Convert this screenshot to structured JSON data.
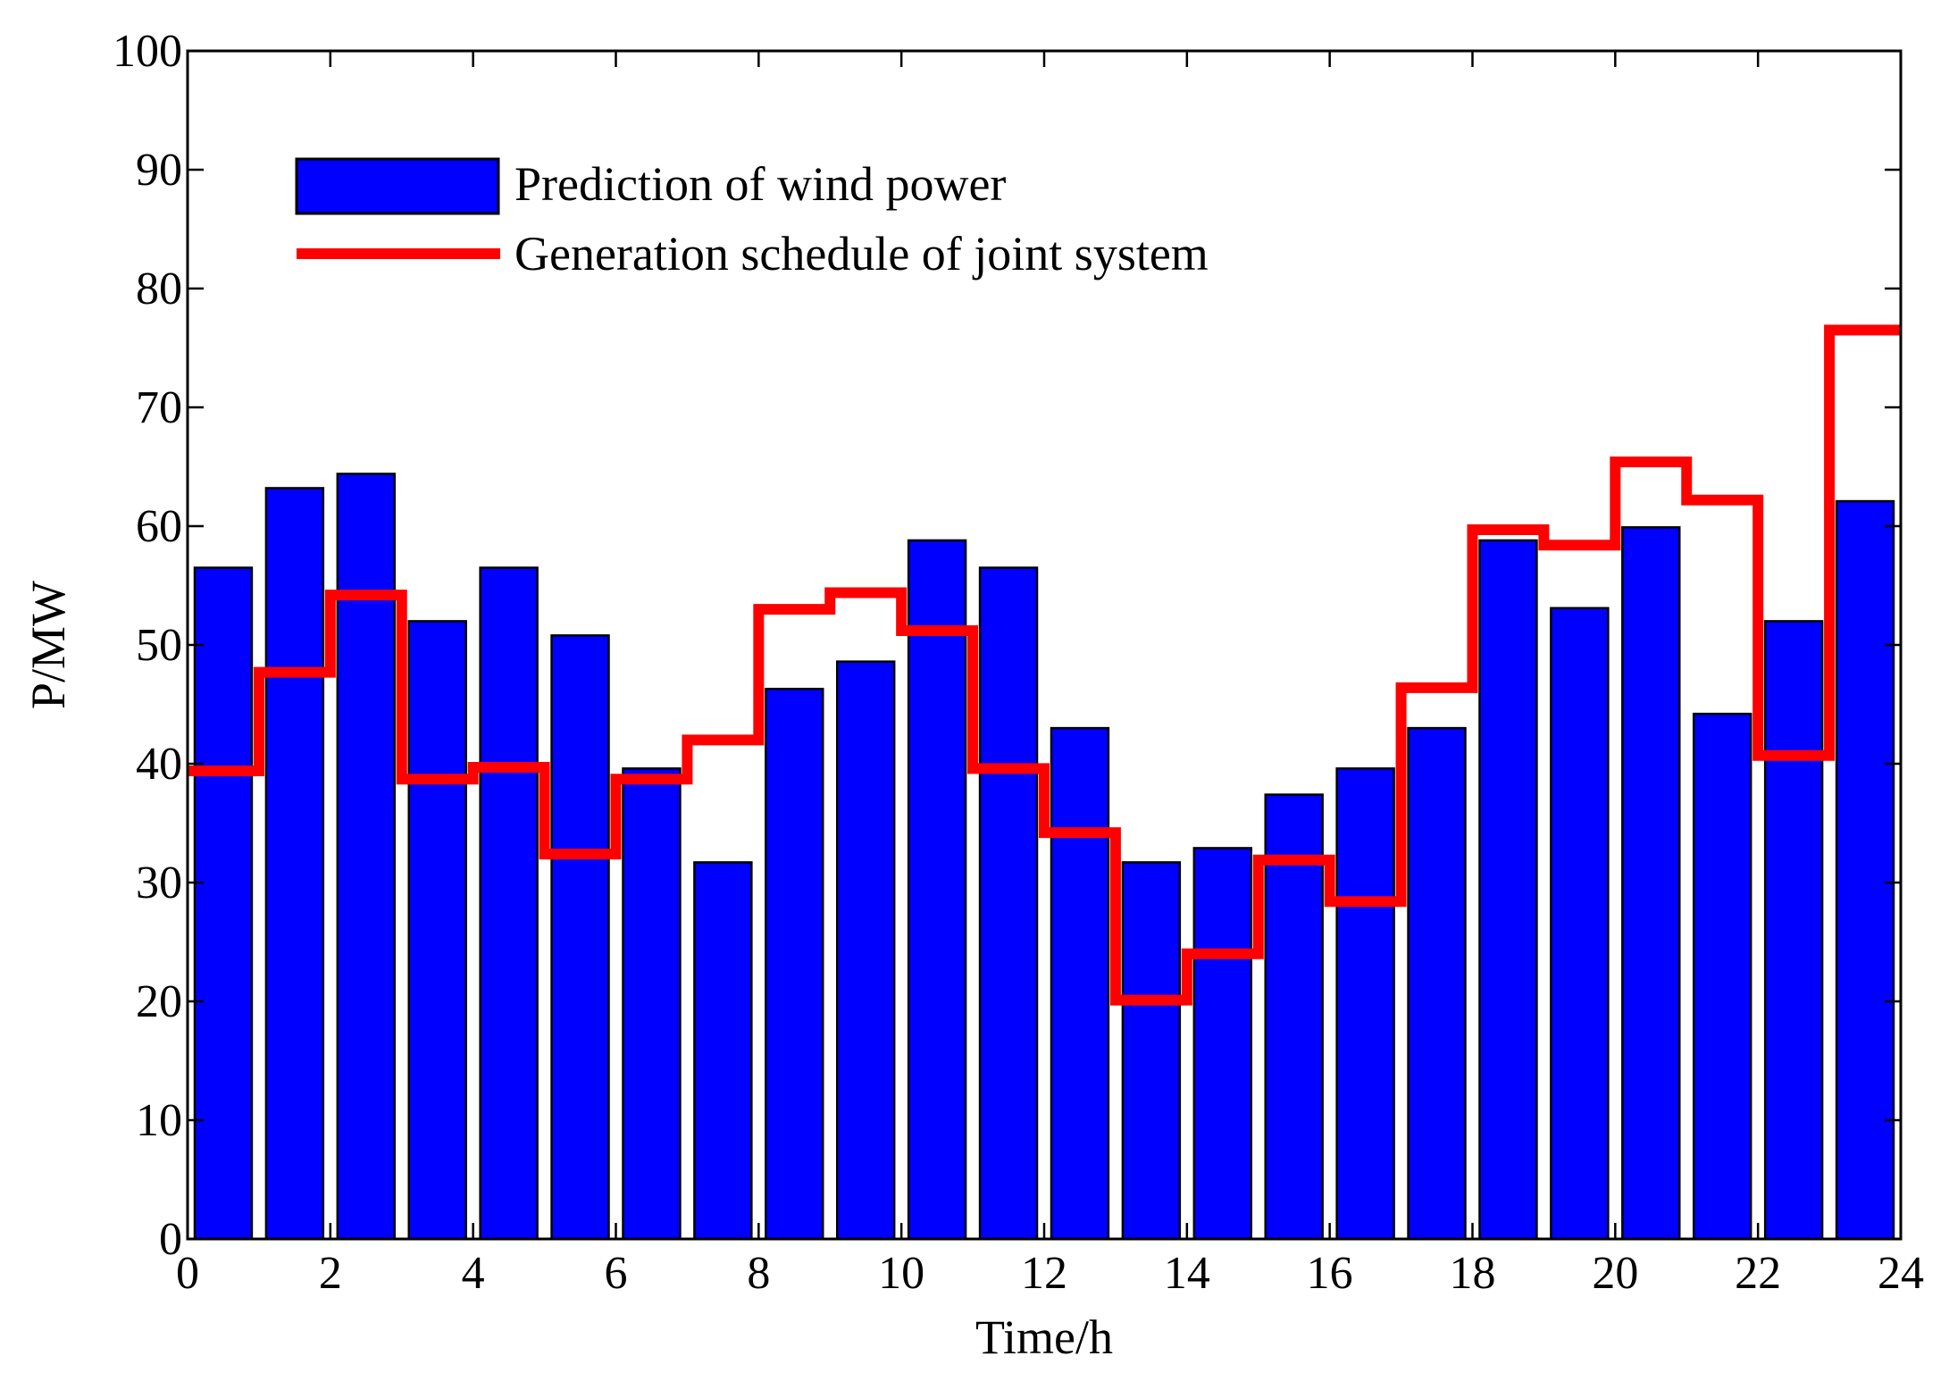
{
  "chart_data": {
    "type": "bar",
    "title": "",
    "xlabel": "Time/h",
    "ylabel": "P/MW",
    "xlim": [
      0,
      24
    ],
    "ylim": [
      0,
      100
    ],
    "xticks": [
      "0",
      "2",
      "4",
      "6",
      "8",
      "10",
      "12",
      "14",
      "16",
      "18",
      "20",
      "22",
      "24"
    ],
    "yticks": [
      "0",
      "10",
      "20",
      "30",
      "40",
      "50",
      "60",
      "70",
      "80",
      "90",
      "100"
    ],
    "grid": false,
    "legend_position": "top-left",
    "series": [
      {
        "name": "Prediction of wind power",
        "kind": "bar",
        "color": "#0000ff",
        "x": [
          0.5,
          1.5,
          2.5,
          3.5,
          4.5,
          5.5,
          6.5,
          7.5,
          8.5,
          9.5,
          10.5,
          11.5,
          12.5,
          13.5,
          14.5,
          15.5,
          16.5,
          17.5,
          18.5,
          19.5,
          20.5,
          21.5,
          22.5,
          23.5
        ],
        "values": [
          56.5,
          63.2,
          64.4,
          52.0,
          56.5,
          50.8,
          39.6,
          31.7,
          46.3,
          48.6,
          58.8,
          56.5,
          43.0,
          31.7,
          32.9,
          37.4,
          39.6,
          43.0,
          58.8,
          53.1,
          59.9,
          44.2,
          52.0,
          62.1
        ]
      },
      {
        "name": "Generation schedule of joint system",
        "kind": "step",
        "color": "#ff0000",
        "x": [
          0,
          1,
          2,
          3,
          4,
          5,
          6,
          7,
          8,
          9,
          10,
          11,
          12,
          13,
          14,
          15,
          16,
          17,
          18,
          19,
          20,
          21,
          22,
          23
        ],
        "values": [
          39.4,
          47.7,
          54.2,
          38.7,
          39.7,
          32.4,
          38.7,
          42.0,
          53.0,
          54.4,
          51.2,
          39.6,
          34.2,
          20.1,
          24.0,
          31.9,
          28.4,
          46.4,
          59.7,
          58.4,
          65.4,
          62.2,
          40.7,
          76.5
        ]
      }
    ]
  }
}
